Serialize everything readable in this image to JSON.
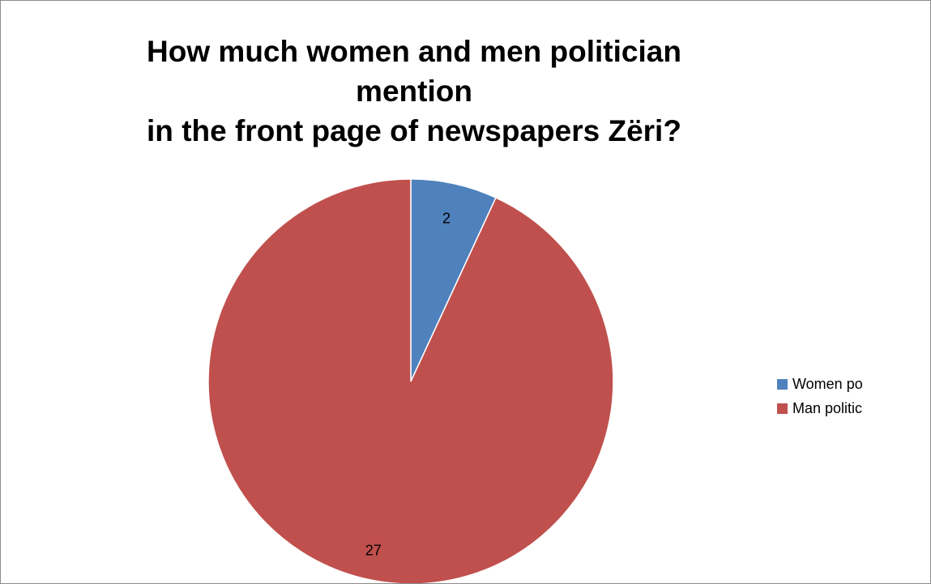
{
  "chart_data": {
    "type": "pie",
    "title": "How much women and men politician  mention\nin the front page of newspapers Zëri?",
    "categories": [
      "Women politician",
      "Man politician"
    ],
    "values": [
      2,
      27
    ],
    "data_labels": [
      "2",
      "27"
    ],
    "colors": [
      "#4F81BD",
      "#C0504D"
    ],
    "legend_position": "right",
    "legend_visible_text": [
      "Women po",
      "Man politic"
    ]
  }
}
